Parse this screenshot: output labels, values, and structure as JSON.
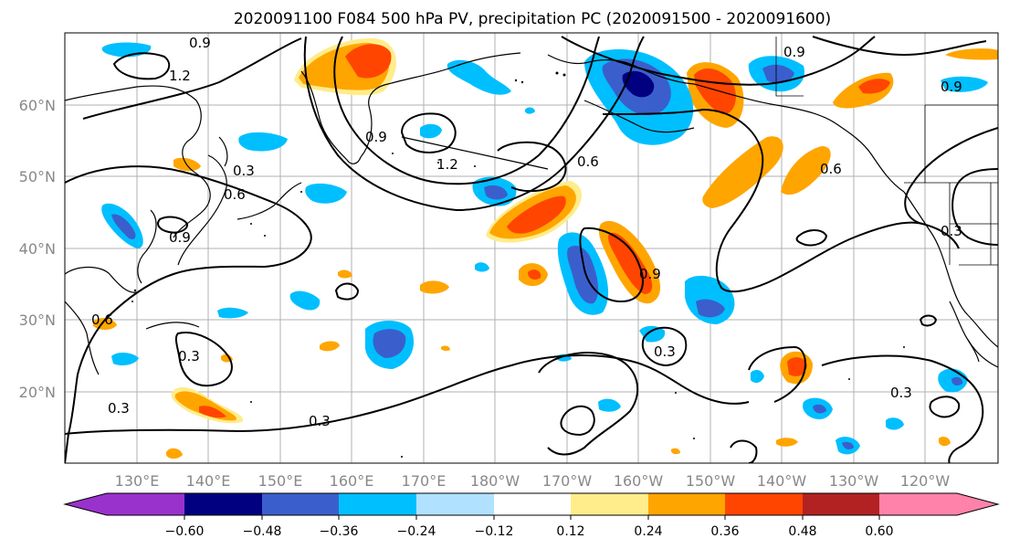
{
  "title": "2020091100 F084 500 hPa PV, precipitation PC (2020091500 - 2020091600)",
  "map": {
    "lat_ticks": [
      "60°N",
      "50°N",
      "40°N",
      "30°N",
      "20°N"
    ],
    "lon_ticks": [
      "130°E",
      "140°E",
      "150°E",
      "160°E",
      "170°E",
      "180°W",
      "170°W",
      "160°W",
      "150°W",
      "140°W",
      "130°W",
      "120°W"
    ],
    "contour_labels": [
      "0.9",
      "1.2",
      "1.2",
      "0.9",
      "0.3",
      "0.6",
      "0.9",
      "0.9",
      "0.6",
      "0.6",
      "0.9",
      "0.3",
      "0.9",
      "0.6",
      "0.3",
      "0.3",
      "0.3",
      "0.3",
      "0.3"
    ]
  },
  "colorbar": {
    "ticks": [
      "−0.60",
      "−0.48",
      "−0.36",
      "−0.24",
      "−0.12",
      "0.12",
      "0.24",
      "0.36",
      "0.48",
      "0.60"
    ],
    "colors": [
      "#9932CC",
      "#000080",
      "#3A5FCD",
      "#00BFFF",
      "#B0E2FF",
      "#FFFFFF",
      "#FFEC8B",
      "#FFA500",
      "#FF4500",
      "#B22222",
      "#FF82AB"
    ]
  }
}
